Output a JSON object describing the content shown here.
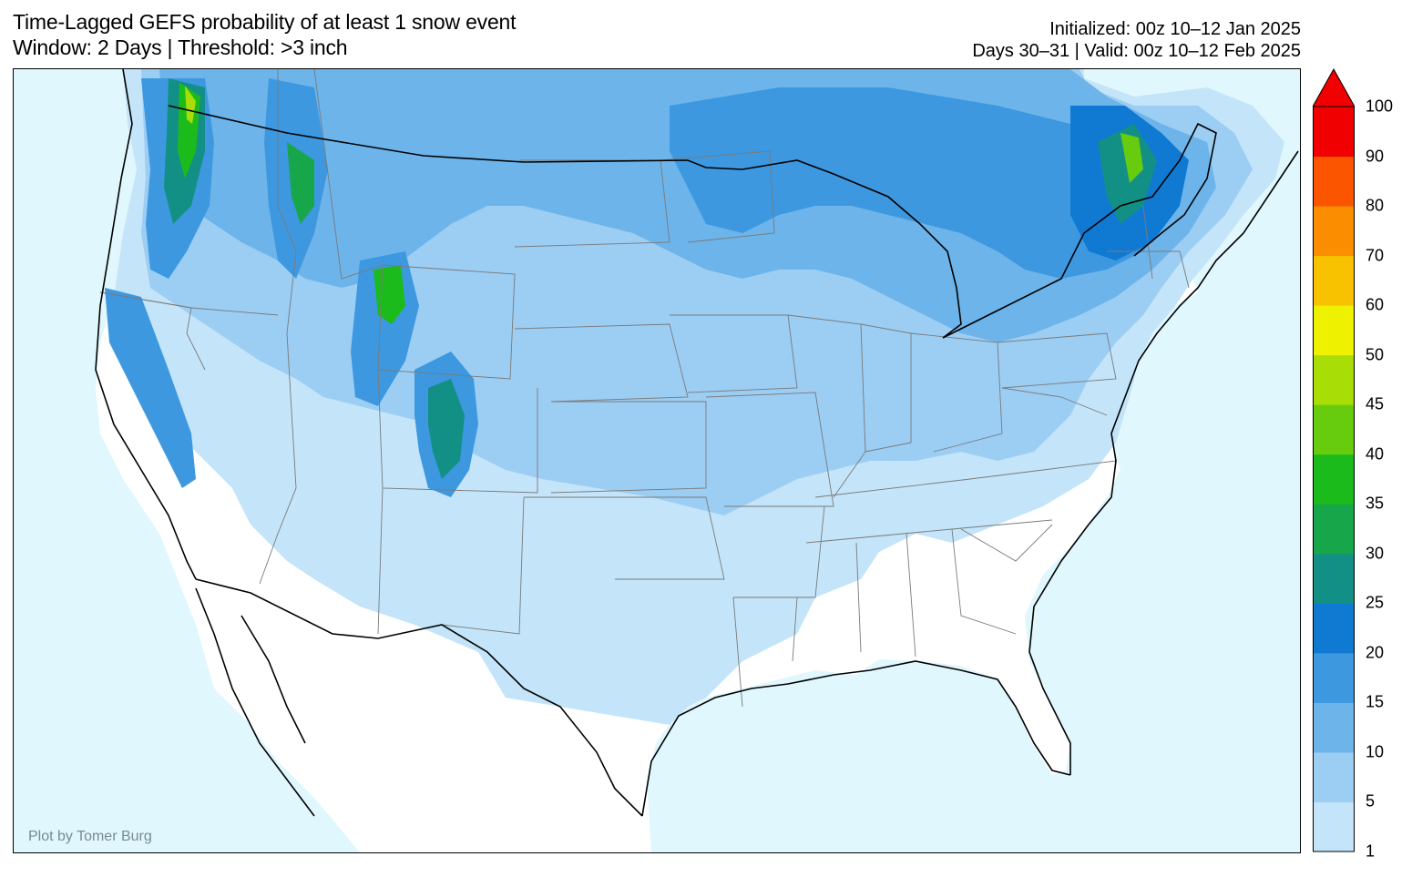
{
  "title": {
    "line1": "Time-Lagged GEFS probability of at least 1 snow event",
    "line2": "Window: 2 Days | Threshold: >3 inch"
  },
  "meta": {
    "initialized": "Initialized: 00z 10–12 Jan 2025",
    "valid": "Days 30–31 | Valid: 00z 10–12 Feb 2025"
  },
  "credit": "Plot by Tomer Burg",
  "colors": {
    "ocean": "#e0f7fd",
    "land": "#ffffff",
    "border": "#000000",
    "state_line": "#7a7a7a"
  },
  "colorbar": {
    "levels": [
      1,
      5,
      10,
      15,
      20,
      25,
      30,
      35,
      40,
      45,
      50,
      60,
      70,
      80,
      90,
      100
    ],
    "tick_labels": [
      "1",
      "5",
      "10",
      "15",
      "20",
      "25",
      "30",
      "35",
      "40",
      "45",
      "50",
      "60",
      "70",
      "80",
      "90",
      "100"
    ],
    "colors": [
      "#c3e4f9",
      "#9ccdf3",
      "#6db4ea",
      "#3d98e0",
      "#107ad3",
      "#139085",
      "#18a64a",
      "#1cbb1c",
      "#66cc0d",
      "#a9dd06",
      "#eef200",
      "#f9c200",
      "#fa8e00",
      "#fb5500",
      "#f00000"
    ],
    "extend": "max"
  }
}
